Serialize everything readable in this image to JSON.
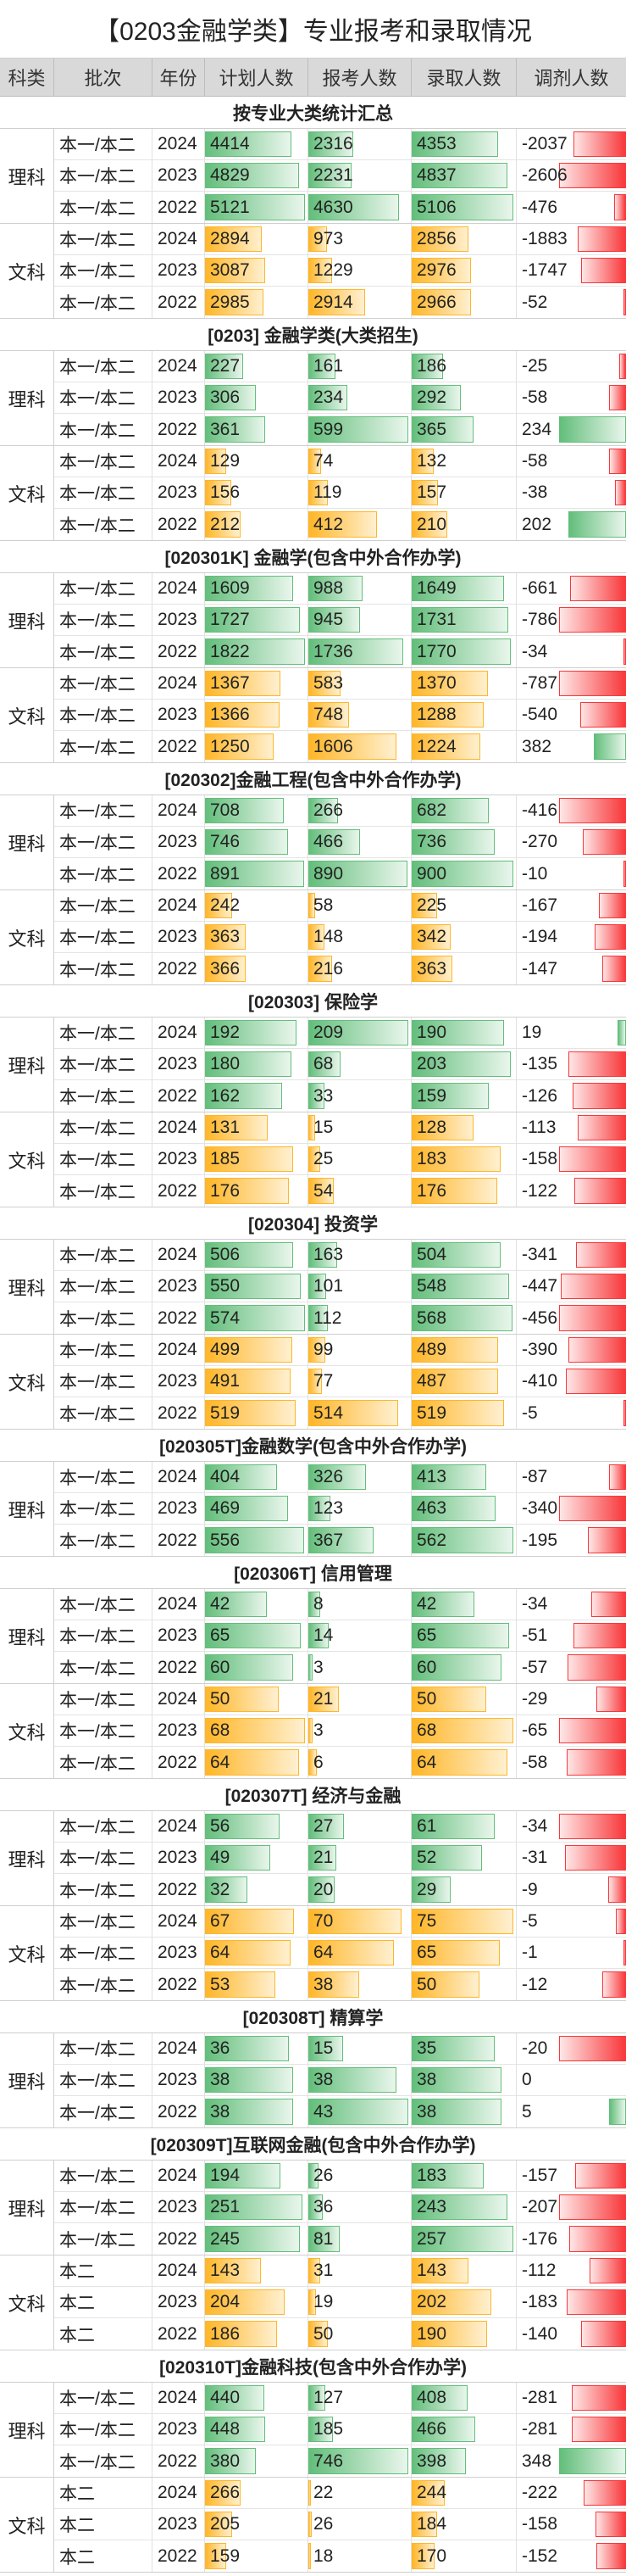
{
  "title": "【0203金融学类】专业报考和录取情况",
  "headers": [
    "科类",
    "批次",
    "年份",
    "计划人数",
    "报考人数",
    "录取人数",
    "调剂人数"
  ],
  "sections": [
    {
      "title": "按专业大类统计汇总",
      "groups": [
        {
          "kelei": "理科",
          "rows": [
            [
              "本一/本二",
              "2024",
              "4414",
              "2316",
              "4353",
              "-2037"
            ],
            [
              "本一/本二",
              "2023",
              "4829",
              "2231",
              "4837",
              "-2606"
            ],
            [
              "本一/本二",
              "2022",
              "5121",
              "4630",
              "5106",
              "-476"
            ]
          ]
        },
        {
          "kelei": "文科",
          "rows": [
            [
              "本一/本二",
              "2024",
              "2894",
              "973",
              "2856",
              "-1883"
            ],
            [
              "本一/本二",
              "2023",
              "3087",
              "1229",
              "2976",
              "-1747"
            ],
            [
              "本一/本二",
              "2022",
              "2985",
              "2914",
              "2966",
              "-52"
            ]
          ]
        }
      ]
    },
    {
      "title": "[0203] 金融学类(大类招生)",
      "groups": [
        {
          "kelei": "理科",
          "rows": [
            [
              "本一/本二",
              "2024",
              "227",
              "161",
              "186",
              "-25"
            ],
            [
              "本一/本二",
              "2023",
              "306",
              "234",
              "292",
              "-58"
            ],
            [
              "本一/本二",
              "2022",
              "361",
              "599",
              "365",
              "234"
            ]
          ]
        },
        {
          "kelei": "文科",
          "rows": [
            [
              "本一/本二",
              "2024",
              "129",
              "74",
              "132",
              "-58"
            ],
            [
              "本一/本二",
              "2023",
              "156",
              "119",
              "157",
              "-38"
            ],
            [
              "本一/本二",
              "2022",
              "212",
              "412",
              "210",
              "202"
            ]
          ]
        }
      ]
    },
    {
      "title": "[020301K] 金融学(包含中外合作办学)",
      "groups": [
        {
          "kelei": "理科",
          "rows": [
            [
              "本一/本二",
              "2024",
              "1609",
              "988",
              "1649",
              "-661"
            ],
            [
              "本一/本二",
              "2023",
              "1727",
              "945",
              "1731",
              "-786"
            ],
            [
              "本一/本二",
              "2022",
              "1822",
              "1736",
              "1770",
              "-34"
            ]
          ]
        },
        {
          "kelei": "文科",
          "rows": [
            [
              "本一/本二",
              "2024",
              "1367",
              "583",
              "1370",
              "-787"
            ],
            [
              "本一/本二",
              "2023",
              "1366",
              "748",
              "1288",
              "-540"
            ],
            [
              "本一/本二",
              "2022",
              "1250",
              "1606",
              "1224",
              "382"
            ]
          ]
        }
      ]
    },
    {
      "title": "[020302]金融工程(包含中外合作办学)",
      "groups": [
        {
          "kelei": "理科",
          "rows": [
            [
              "本一/本二",
              "2024",
              "708",
              "266",
              "682",
              "-416"
            ],
            [
              "本一/本二",
              "2023",
              "746",
              "466",
              "736",
              "-270"
            ],
            [
              "本一/本二",
              "2022",
              "891",
              "890",
              "900",
              "-10"
            ]
          ]
        },
        {
          "kelei": "文科",
          "rows": [
            [
              "本一/本二",
              "2024",
              "242",
              "58",
              "225",
              "-167"
            ],
            [
              "本一/本二",
              "2023",
              "363",
              "148",
              "342",
              "-194"
            ],
            [
              "本一/本二",
              "2022",
              "366",
              "216",
              "363",
              "-147"
            ]
          ]
        }
      ]
    },
    {
      "title": "[020303] 保险学",
      "groups": [
        {
          "kelei": "理科",
          "rows": [
            [
              "本一/本二",
              "2024",
              "192",
              "209",
              "190",
              "19"
            ],
            [
              "本一/本二",
              "2023",
              "180",
              "68",
              "203",
              "-135"
            ],
            [
              "本一/本二",
              "2022",
              "162",
              "33",
              "159",
              "-126"
            ]
          ]
        },
        {
          "kelei": "文科",
          "rows": [
            [
              "本一/本二",
              "2024",
              "131",
              "15",
              "128",
              "-113"
            ],
            [
              "本一/本二",
              "2023",
              "185",
              "25",
              "183",
              "-158"
            ],
            [
              "本一/本二",
              "2022",
              "176",
              "54",
              "176",
              "-122"
            ]
          ]
        }
      ]
    },
    {
      "title": "[020304] 投资学",
      "groups": [
        {
          "kelei": "理科",
          "rows": [
            [
              "本一/本二",
              "2024",
              "506",
              "163",
              "504",
              "-341"
            ],
            [
              "本一/本二",
              "2023",
              "550",
              "101",
              "548",
              "-447"
            ],
            [
              "本一/本二",
              "2022",
              "574",
              "112",
              "568",
              "-456"
            ]
          ]
        },
        {
          "kelei": "文科",
          "rows": [
            [
              "本一/本二",
              "2024",
              "499",
              "99",
              "489",
              "-390"
            ],
            [
              "本一/本二",
              "2023",
              "491",
              "77",
              "487",
              "-410"
            ],
            [
              "本一/本二",
              "2022",
              "519",
              "514",
              "519",
              "-5"
            ]
          ]
        }
      ]
    },
    {
      "title": "[020305T]金融数学(包含中外合作办学)",
      "groups": [
        {
          "kelei": "理科",
          "rows": [
            [
              "本一/本二",
              "2024",
              "404",
              "326",
              "413",
              "-87"
            ],
            [
              "本一/本二",
              "2023",
              "469",
              "123",
              "463",
              "-340"
            ],
            [
              "本一/本二",
              "2022",
              "556",
              "367",
              "562",
              "-195"
            ]
          ]
        }
      ]
    },
    {
      "title": "[020306T] 信用管理",
      "groups": [
        {
          "kelei": "理科",
          "rows": [
            [
              "本一/本二",
              "2024",
              "42",
              "8",
              "42",
              "-34"
            ],
            [
              "本一/本二",
              "2023",
              "65",
              "14",
              "65",
              "-51"
            ],
            [
              "本一/本二",
              "2022",
              "60",
              "3",
              "60",
              "-57"
            ]
          ]
        },
        {
          "kelei": "文科",
          "rows": [
            [
              "本一/本二",
              "2024",
              "50",
              "21",
              "50",
              "-29"
            ],
            [
              "本一/本二",
              "2023",
              "68",
              "3",
              "68",
              "-65"
            ],
            [
              "本一/本二",
              "2022",
              "64",
              "6",
              "64",
              "-58"
            ]
          ]
        }
      ]
    },
    {
      "title": "[020307T] 经济与金融",
      "groups": [
        {
          "kelei": "理科",
          "rows": [
            [
              "本一/本二",
              "2024",
              "56",
              "27",
              "61",
              "-34"
            ],
            [
              "本一/本二",
              "2023",
              "49",
              "21",
              "52",
              "-31"
            ],
            [
              "本一/本二",
              "2022",
              "32",
              "20",
              "29",
              "-9"
            ]
          ]
        },
        {
          "kelei": "文科",
          "rows": [
            [
              "本一/本二",
              "2024",
              "67",
              "70",
              "75",
              "-5"
            ],
            [
              "本一/本二",
              "2023",
              "64",
              "64",
              "65",
              "-1"
            ],
            [
              "本一/本二",
              "2022",
              "53",
              "38",
              "50",
              "-12"
            ]
          ]
        }
      ]
    },
    {
      "title": "[020308T] 精算学",
      "groups": [
        {
          "kelei": "理科",
          "rows": [
            [
              "本一/本二",
              "2024",
              "36",
              "15",
              "35",
              "-20"
            ],
            [
              "本一/本二",
              "2023",
              "38",
              "38",
              "38",
              "0"
            ],
            [
              "本一/本二",
              "2022",
              "38",
              "43",
              "38",
              "5"
            ]
          ]
        }
      ]
    },
    {
      "title": "[020309T]互联网金融(包含中外合作办学)",
      "groups": [
        {
          "kelei": "理科",
          "rows": [
            [
              "本一/本二",
              "2024",
              "194",
              "26",
              "183",
              "-157"
            ],
            [
              "本一/本二",
              "2023",
              "251",
              "36",
              "243",
              "-207"
            ],
            [
              "本一/本二",
              "2022",
              "245",
              "81",
              "257",
              "-176"
            ]
          ]
        },
        {
          "kelei": "文科",
          "rows": [
            [
              "本二",
              "2024",
              "143",
              "31",
              "143",
              "-112"
            ],
            [
              "本二",
              "2023",
              "204",
              "19",
              "202",
              "-183"
            ],
            [
              "本二",
              "2022",
              "186",
              "50",
              "190",
              "-140"
            ]
          ]
        }
      ]
    },
    {
      "title": "[020310T]金融科技(包含中外合作办学)",
      "groups": [
        {
          "kelei": "理科",
          "rows": [
            [
              "本一/本二",
              "2024",
              "440",
              "127",
              "408",
              "-281"
            ],
            [
              "本一/本二",
              "2023",
              "448",
              "185",
              "466",
              "-281"
            ],
            [
              "本一/本二",
              "2022",
              "380",
              "746",
              "398",
              "348"
            ]
          ]
        },
        {
          "kelei": "文科",
          "rows": [
            [
              "本二",
              "2024",
              "266",
              "22",
              "244",
              "-222"
            ],
            [
              "本二",
              "2023",
              "205",
              "26",
              "184",
              "-158"
            ],
            [
              "本二",
              "2022",
              "159",
              "18",
              "170",
              "-152"
            ]
          ]
        }
      ]
    }
  ]
}
